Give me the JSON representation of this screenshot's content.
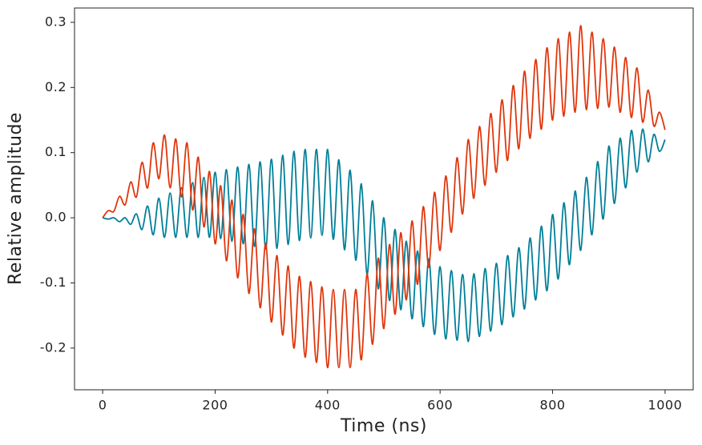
{
  "chart_data": {
    "type": "line",
    "x_label": "Time (ns)",
    "y_label": "Relative amplitude",
    "x": [
      0,
      10,
      20,
      30,
      40,
      50,
      60,
      70,
      80,
      90,
      100,
      110,
      120,
      130,
      140,
      150,
      160,
      170,
      180,
      190,
      200,
      210,
      220,
      230,
      240,
      250,
      260,
      270,
      280,
      290,
      300,
      310,
      320,
      330,
      340,
      350,
      360,
      370,
      380,
      390,
      400,
      410,
      420,
      430,
      440,
      450,
      460,
      470,
      480,
      490,
      500,
      510,
      520,
      530,
      540,
      550,
      560,
      570,
      580,
      590,
      600,
      610,
      620,
      630,
      640,
      650,
      660,
      670,
      680,
      690,
      700,
      710,
      720,
      730,
      740,
      750,
      760,
      770,
      780,
      790,
      800,
      810,
      820,
      830,
      840,
      850,
      860,
      870,
      880,
      890,
      900,
      910,
      920,
      930,
      940,
      950,
      960,
      970,
      980,
      990,
      1000
    ],
    "series": [
      {
        "color": "#007f99",
        "values": [
          0,
          -0.002,
          0,
          -0.006,
          0,
          -0.01,
          0.006,
          -0.018,
          0.018,
          -0.026,
          0.03,
          -0.03,
          0.038,
          -0.03,
          0.046,
          -0.03,
          0.054,
          -0.03,
          0.062,
          -0.03,
          0.07,
          -0.032,
          0.074,
          -0.036,
          0.078,
          -0.04,
          0.082,
          -0.044,
          0.086,
          -0.048,
          0.09,
          -0.047,
          0.096,
          -0.041,
          0.102,
          -0.035,
          0.105,
          -0.031,
          0.105,
          -0.027,
          0.105,
          -0.033,
          0.089,
          -0.049,
          0.073,
          -0.065,
          0.052,
          -0.087,
          0.026,
          -0.109,
          0,
          -0.127,
          -0.018,
          -0.141,
          -0.036,
          -0.155,
          -0.051,
          -0.167,
          -0.063,
          -0.179,
          -0.075,
          -0.186,
          -0.081,
          -0.188,
          -0.087,
          -0.19,
          -0.086,
          -0.182,
          -0.078,
          -0.174,
          -0.07,
          -0.164,
          -0.058,
          -0.152,
          -0.046,
          -0.14,
          -0.031,
          -0.126,
          -0.013,
          -0.112,
          0.005,
          -0.094,
          0.023,
          -0.072,
          0.041,
          -0.05,
          0.062,
          -0.026,
          0.086,
          -0.002,
          0.11,
          0.022,
          0.122,
          0.046,
          0.134,
          0.07,
          0.136,
          0.086,
          0.128,
          0.102,
          0.12
        ]
      },
      {
        "color": "#e0360c",
        "values": [
          0,
          0.011,
          0.01,
          0.033,
          0.02,
          0.055,
          0.032,
          0.085,
          0.046,
          0.115,
          0.06,
          0.127,
          0.046,
          0.121,
          0.032,
          0.115,
          0.012,
          0.093,
          -0.014,
          0.071,
          -0.04,
          0.049,
          -0.066,
          0.027,
          -0.092,
          0.005,
          -0.116,
          -0.017,
          -0.138,
          -0.039,
          -0.16,
          -0.058,
          -0.18,
          -0.074,
          -0.2,
          -0.09,
          -0.214,
          -0.098,
          -0.222,
          -0.106,
          -0.23,
          -0.11,
          -0.23,
          -0.11,
          -0.23,
          -0.11,
          -0.218,
          -0.086,
          -0.194,
          -0.062,
          -0.17,
          -0.041,
          -0.148,
          -0.023,
          -0.126,
          -0.005,
          -0.102,
          0.017,
          -0.076,
          0.039,
          -0.05,
          0.064,
          -0.022,
          0.092,
          0.006,
          0.12,
          0.03,
          0.14,
          0.05,
          0.16,
          0.07,
          0.181,
          0.088,
          0.203,
          0.106,
          0.225,
          0.122,
          0.243,
          0.136,
          0.261,
          0.15,
          0.275,
          0.156,
          0.285,
          0.162,
          0.295,
          0.166,
          0.285,
          0.168,
          0.275,
          0.17,
          0.262,
          0.162,
          0.246,
          0.154,
          0.23,
          0.147,
          0.196,
          0.141,
          0.162,
          0.135
        ]
      }
    ],
    "xlim": [
      -50,
      1050
    ],
    "xticks": [
      0,
      200,
      400,
      600,
      800,
      1000
    ],
    "ylim": [
      -0.264,
      0.322
    ],
    "yticks": [
      -0.2,
      -0.1,
      {
        "value": 0,
        "label": "0.0"
      },
      0.1,
      0.2,
      0.3
    ],
    "grid": false
  }
}
